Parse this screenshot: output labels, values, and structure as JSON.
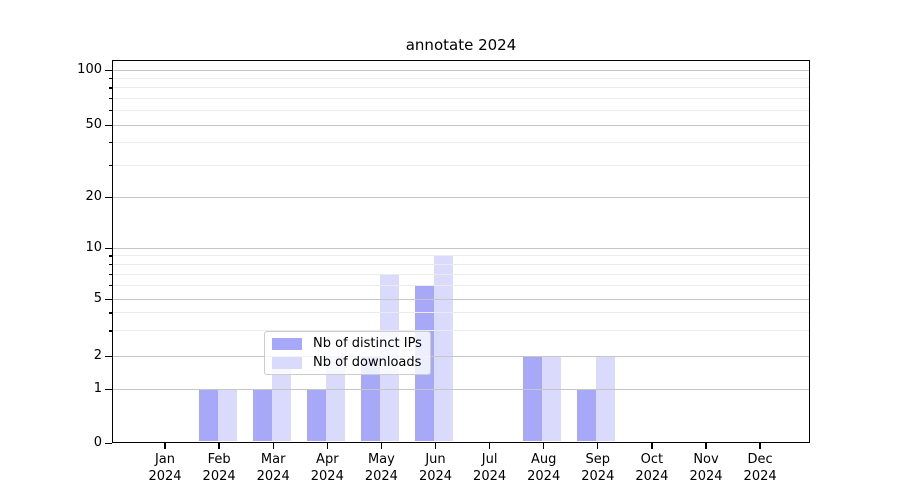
{
  "title": "annotate 2024",
  "chart_data": {
    "type": "bar",
    "title": "annotate 2024",
    "categories": [
      "Jan",
      "Feb",
      "Mar",
      "Apr",
      "May",
      "Jun",
      "Jul",
      "Aug",
      "Sep",
      "Oct",
      "Nov",
      "Dec"
    ],
    "x_tick_label_year": "2024",
    "series": [
      {
        "name": "Nb of distinct IPs",
        "color": "#a7a9f8",
        "values": [
          0,
          1,
          1,
          1,
          2,
          6,
          0,
          2,
          1,
          0,
          0,
          0
        ]
      },
      {
        "name": "Nb of downloads",
        "color": "#d9dafc",
        "values": [
          0,
          1,
          2,
          2,
          7,
          9,
          0,
          2,
          2,
          0,
          0,
          0
        ]
      }
    ],
    "yscale": "symlog",
    "ylim": [
      0,
      100
    ],
    "y_tick_labels": [
      "0",
      "1",
      "2",
      "5",
      "10",
      "20",
      "50",
      "100"
    ],
    "y_minor_gridlines": [
      3,
      4,
      6,
      7,
      8,
      9,
      30,
      40,
      60,
      70,
      80,
      90
    ],
    "grid": true,
    "legend_position": "lower center",
    "colors": {
      "bar_distinct_ips": "#a7a9f8",
      "bar_downloads": "#d9dafc",
      "major_grid": "#c6c6c6",
      "minor_grid": "#ebebeb",
      "spine": "#000000",
      "text": "#000000"
    }
  }
}
